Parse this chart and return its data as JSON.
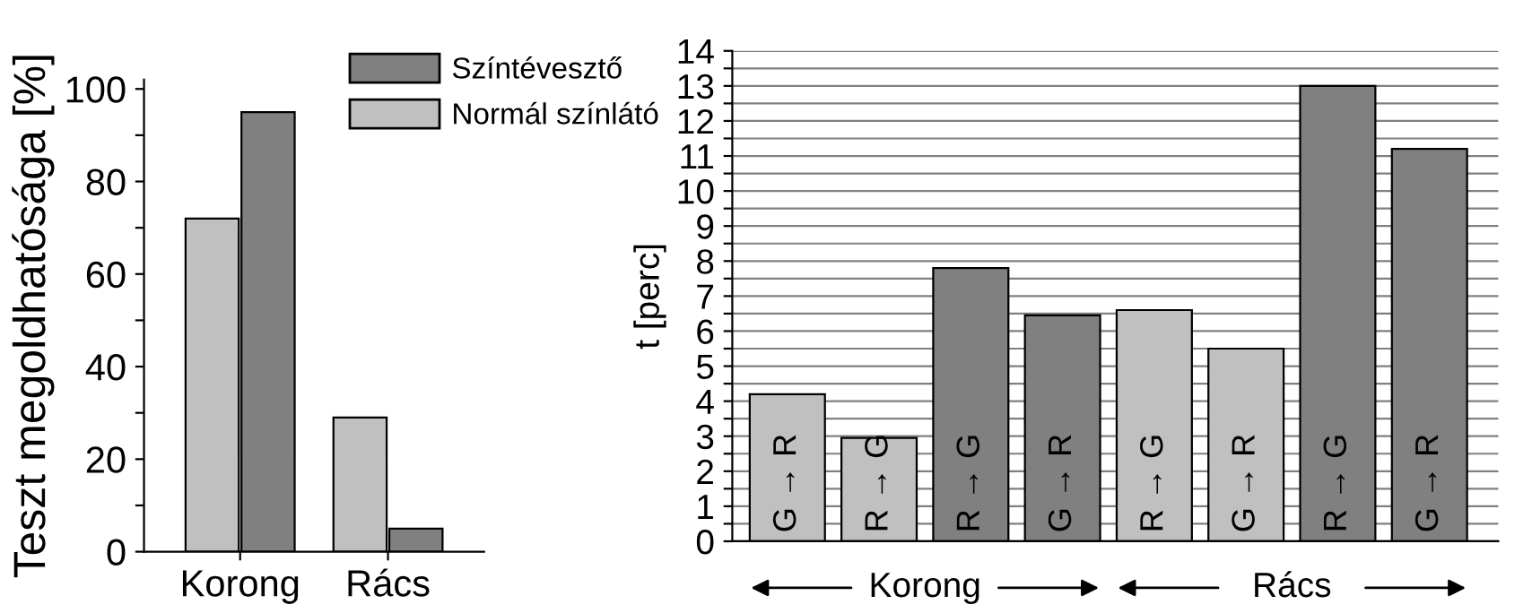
{
  "chart_data": [
    {
      "type": "bar",
      "ylabel": "Teszt megoldhatósága [%]",
      "categories": [
        "Korong",
        "Rács"
      ],
      "series": [
        {
          "name": "Normál színlátó",
          "color": "#c0c0c0",
          "values": [
            72,
            29
          ]
        },
        {
          "name": "Színtévesztő",
          "color": "#808080",
          "values": [
            95,
            5
          ]
        }
      ],
      "ylim": [
        0,
        102
      ],
      "yticks": [
        0,
        {
          "value": 10,
          "label": null
        },
        20,
        {
          "value": 30,
          "label": null
        },
        40,
        {
          "value": 50,
          "label": null
        },
        60,
        {
          "value": 70,
          "label": null
        },
        80,
        {
          "value": 90,
          "label": null
        },
        100
      ],
      "legend": "top right",
      "grid": false
    },
    {
      "type": "bar",
      "ylabel": "t [perc]",
      "categories": [
        "G → R",
        "R → G",
        "R → G",
        "G → R",
        "R → G",
        "G → R",
        "R → G",
        "G → R"
      ],
      "values": [
        4.2,
        2.95,
        7.8,
        6.45,
        6.6,
        5.5,
        13.0,
        11.2
      ],
      "colors": [
        "#c0c0c0",
        "#c0c0c0",
        "#808080",
        "#808080",
        "#c0c0c0",
        "#c0c0c0",
        "#808080",
        "#808080"
      ],
      "ylim": [
        0,
        14
      ],
      "yticks": [
        0,
        {
          "value": 0.5,
          "label": null
        },
        1,
        {
          "value": 1.5,
          "label": null
        },
        2,
        {
          "value": 2.5,
          "label": null
        },
        3,
        {
          "value": 3.5,
          "label": null
        },
        4,
        {
          "value": 4.5,
          "label": null
        },
        5,
        {
          "value": 5.5,
          "label": null
        },
        6,
        {
          "value": 6.5,
          "label": null
        },
        7,
        {
          "value": 7.5,
          "label": null
        },
        8,
        {
          "value": 8.5,
          "label": null
        },
        9,
        {
          "value": 9.5,
          "label": null
        },
        10,
        {
          "value": 10.5,
          "label": null
        },
        11,
        {
          "value": 11.5,
          "label": null
        },
        12,
        {
          "value": 12.5,
          "label": null
        },
        13,
        {
          "value": 13.5,
          "label": null
        },
        14
      ],
      "grid": "y",
      "annotations": [
        "Korong",
        "Rács"
      ]
    }
  ]
}
